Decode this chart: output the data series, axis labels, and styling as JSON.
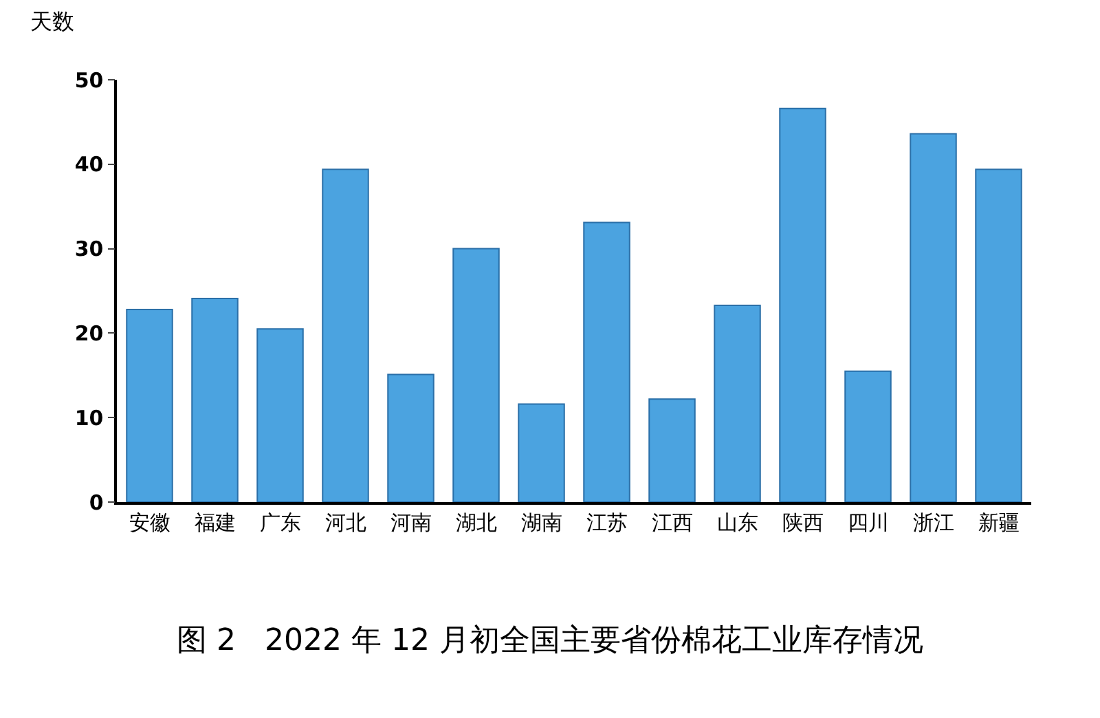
{
  "chart_data": {
    "type": "bar",
    "title": "图 2   2022 年 12 月初全国主要省份棉花工业库存情况",
    "ylabel": "天数",
    "categories": [
      "安徽",
      "福建",
      "广东",
      "河北",
      "河南",
      "湖北",
      "湖南",
      "江苏",
      "江西",
      "山东",
      "陕西",
      "四川",
      "浙江",
      "新疆"
    ],
    "values": [
      22.8,
      24.1,
      20.5,
      39.4,
      15.1,
      30.0,
      11.6,
      33.1,
      12.2,
      23.3,
      46.6,
      15.5,
      43.6,
      39.4
    ],
    "color": "#4ba3e0",
    "ylim": [
      0,
      50
    ],
    "yticks": [
      0,
      10,
      20,
      30,
      40,
      50
    ]
  }
}
